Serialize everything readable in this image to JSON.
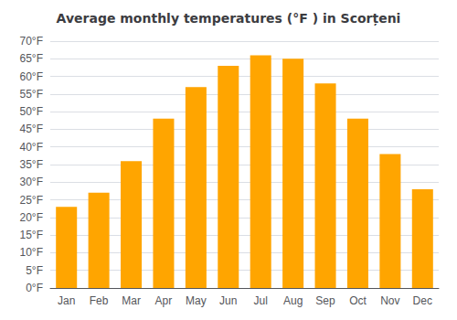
{
  "chart_data": {
    "type": "bar",
    "title": "Average monthly temperatures (°F ) in Scorțeni",
    "categories": [
      "Jan",
      "Feb",
      "Mar",
      "Apr",
      "May",
      "Jun",
      "Jul",
      "Aug",
      "Sep",
      "Oct",
      "Nov",
      "Dec"
    ],
    "values": [
      23,
      27,
      36,
      48,
      57,
      63,
      66,
      65,
      58,
      48,
      38,
      28
    ],
    "color": "#FFA500",
    "ylim": [
      0,
      70
    ],
    "yticks": [
      {
        "value": 0,
        "label": "0°F"
      },
      {
        "value": 5,
        "label": "5°F"
      },
      {
        "value": 10,
        "label": "10°F"
      },
      {
        "value": 15,
        "label": "15°F"
      },
      {
        "value": 20,
        "label": "20°F"
      },
      {
        "value": 25,
        "label": "25°F"
      },
      {
        "value": 30,
        "label": "30°F"
      },
      {
        "value": 35,
        "label": "35°F"
      },
      {
        "value": 40,
        "label": "40°F"
      },
      {
        "value": 45,
        "label": "45°F"
      },
      {
        "value": 50,
        "label": "50°F"
      },
      {
        "value": 55,
        "label": "55°F"
      },
      {
        "value": 60,
        "label": "60°F"
      },
      {
        "value": 65,
        "label": "65°F"
      },
      {
        "value": 70,
        "label": "70°F"
      }
    ],
    "grid": true
  }
}
